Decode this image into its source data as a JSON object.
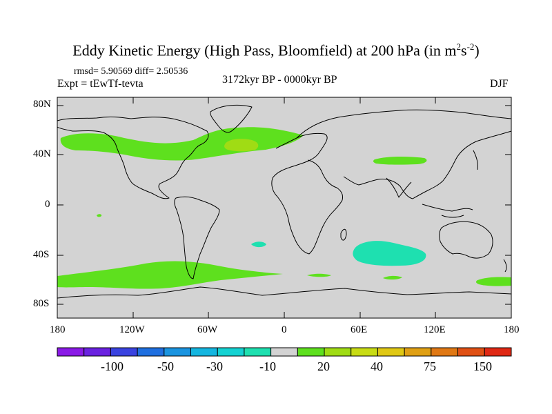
{
  "title": {
    "text": "Eddy Kinetic Energy (High Pass, Bloomfield) at 200 hPa (in m",
    "sup1": "2",
    "mid": "s",
    "sup2": "-2",
    "close": ")"
  },
  "stats": "rmsd= 5.90569  diff= 2.50536",
  "experiment": "Expt = tEwTf-tevta",
  "period": "3172kyr BP - 0000kyr BP",
  "season": "DJF",
  "lat_ticks": [
    "80N",
    "40N",
    "0",
    "40S",
    "80S"
  ],
  "lon_ticks": [
    "180",
    "120W",
    "60W",
    "0",
    "60E",
    "120E",
    "180"
  ],
  "colorbar": {
    "colors": [
      "#8a1ae6",
      "#6a22e0",
      "#3a43e0",
      "#1f6fe0",
      "#1a94e0",
      "#14b6e0",
      "#14d2d2",
      "#1ee0b0",
      "#d3d3d3",
      "#5ee01e",
      "#a0dc14",
      "#c8dc14",
      "#e0c814",
      "#e0a014",
      "#e07814",
      "#e05014",
      "#e02814"
    ],
    "labels": [
      "-100",
      "-50",
      "-30",
      "-10",
      "20",
      "40",
      "75",
      "150"
    ]
  },
  "map": {
    "background": "#d3d3d3",
    "positive_color": "#5ee01e",
    "strong_positive_color": "#a0dc14",
    "negative_color": "#1ee0b0"
  }
}
